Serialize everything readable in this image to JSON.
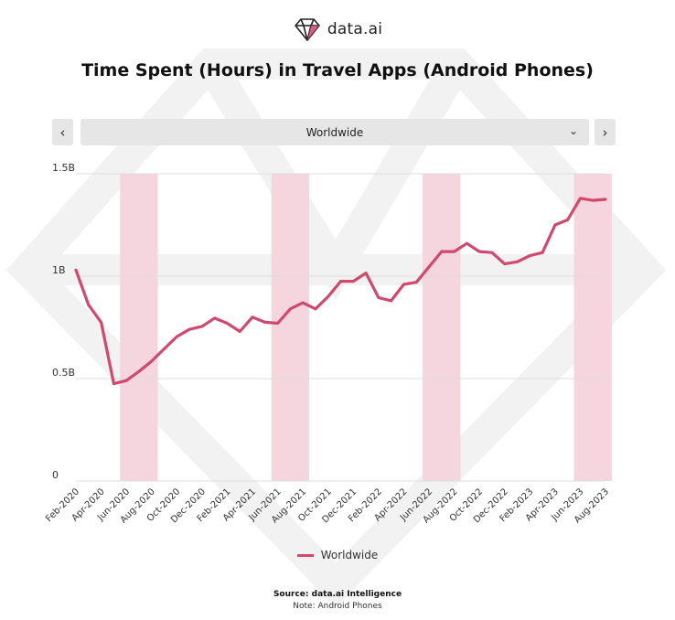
{
  "brand": {
    "name": "data.ai",
    "icon": "diamond-logo-icon"
  },
  "controls": {
    "prev_icon": "chevron-left-icon",
    "next_icon": "chevron-right-icon",
    "region": "Worldwide",
    "dropdown_icon": "chevron-down-icon"
  },
  "colors": {
    "line": "#d0496f",
    "highlight": "#f5d6df",
    "grid": "#dddddd"
  },
  "chart_data": {
    "type": "line",
    "title": "Time Spent (Hours) in Travel Apps (Android Phones)",
    "xlabel": "",
    "ylabel": "",
    "ylim": [
      0,
      1500000000
    ],
    "yticks": [
      {
        "value": 0,
        "label": "0"
      },
      {
        "value": 500000000,
        "label": "0.5B"
      },
      {
        "value": 1000000000,
        "label": "1B"
      },
      {
        "value": 1500000000,
        "label": "1.5B"
      }
    ],
    "x": [
      "Feb-2020",
      "Mar-2020",
      "Apr-2020",
      "May-2020",
      "Jun-2020",
      "Jul-2020",
      "Aug-2020",
      "Sep-2020",
      "Oct-2020",
      "Nov-2020",
      "Dec-2020",
      "Jan-2021",
      "Feb-2021",
      "Mar-2021",
      "Apr-2021",
      "May-2021",
      "Jun-2021",
      "Jul-2021",
      "Aug-2021",
      "Sep-2021",
      "Oct-2021",
      "Nov-2021",
      "Dec-2021",
      "Jan-2022",
      "Feb-2022",
      "Mar-2022",
      "Apr-2022",
      "May-2022",
      "Jun-2022",
      "Jul-2022",
      "Aug-2022",
      "Sep-2022",
      "Oct-2022",
      "Nov-2022",
      "Dec-2022",
      "Jan-2023",
      "Feb-2023",
      "Mar-2023",
      "Apr-2023",
      "May-2023",
      "Jun-2023",
      "Jul-2023",
      "Aug-2023"
    ],
    "xtick_labels": [
      "Feb-2020",
      "Apr-2020",
      "Jun-2020",
      "Aug-2020",
      "Oct-2020",
      "Dec-2020",
      "Feb-2021",
      "Apr-2021",
      "Jun-2021",
      "Aug-2021",
      "Oct-2021",
      "Dec-2021",
      "Feb-2022",
      "Apr-2022",
      "Jun-2022",
      "Aug-2022",
      "Oct-2022",
      "Dec-2022",
      "Feb-2023",
      "Apr-2023",
      "Jun-2023",
      "Aug-2023"
    ],
    "highlight_ranges": [
      [
        "Jun-2020",
        "Aug-2020"
      ],
      [
        "Jun-2021",
        "Aug-2021"
      ],
      [
        "Jun-2022",
        "Aug-2022"
      ],
      [
        "Jun-2023",
        "Aug-2023"
      ]
    ],
    "series": [
      {
        "name": "Worldwide",
        "values": [
          1030000000,
          860000000,
          775000000,
          475000000,
          490000000,
          535000000,
          585000000,
          645000000,
          705000000,
          740000000,
          755000000,
          795000000,
          770000000,
          730000000,
          800000000,
          775000000,
          770000000,
          840000000,
          870000000,
          840000000,
          900000000,
          975000000,
          975000000,
          1015000000,
          895000000,
          880000000,
          960000000,
          970000000,
          1045000000,
          1120000000,
          1120000000,
          1160000000,
          1120000000,
          1115000000,
          1060000000,
          1070000000,
          1100000000,
          1115000000,
          1250000000,
          1275000000,
          1380000000,
          1370000000,
          1375000000
        ]
      }
    ],
    "legend": {
      "position": "bottom",
      "entries": [
        "Worldwide"
      ]
    }
  },
  "footer": {
    "source": "Source: data.ai Intelligence",
    "note": "Note: Android Phones"
  }
}
